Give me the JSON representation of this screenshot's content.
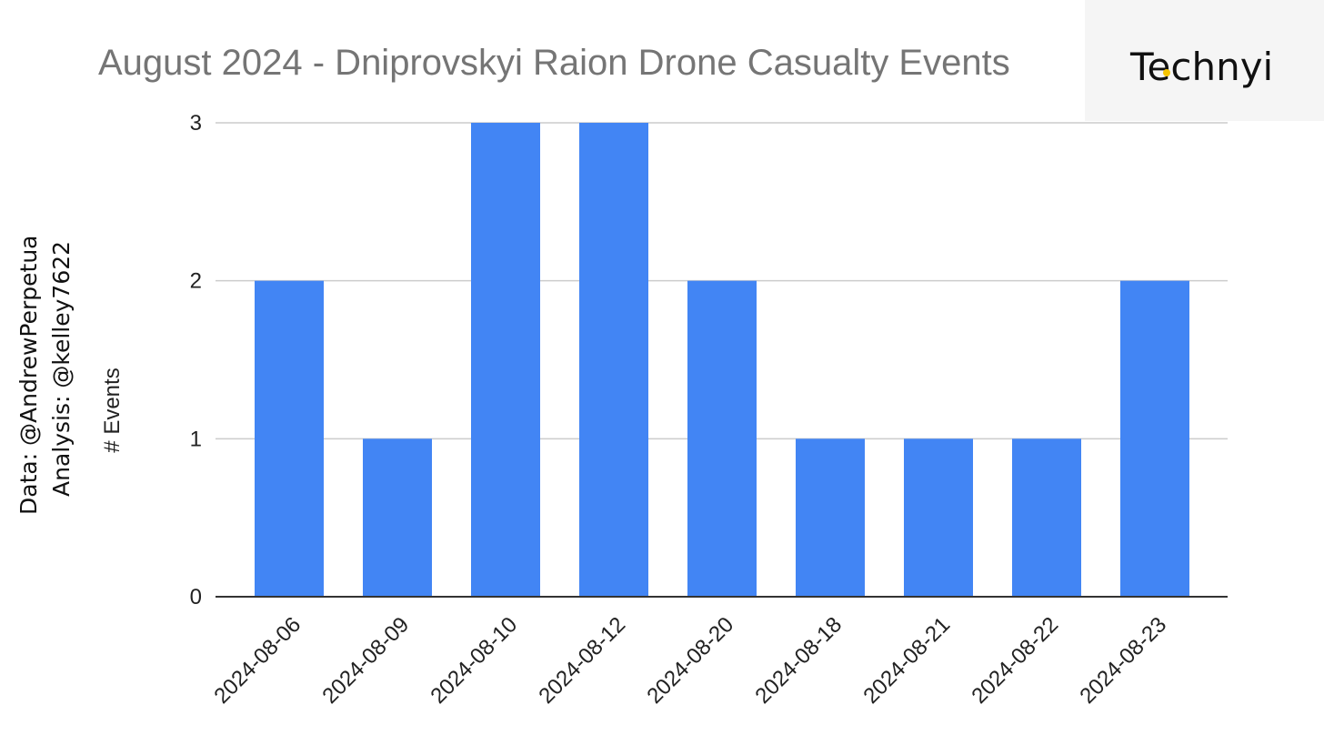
{
  "credits": {
    "data": "Data: @AndrewPerpetua",
    "analysis": "Analysis: @kelley7622"
  },
  "logo": {
    "text": "Technyi",
    "mark": "yellow-dot-icon",
    "mark_color": "#f5c400",
    "background": "#f5f5f5"
  },
  "chart_data": {
    "type": "bar",
    "title": "August 2024 - Dniprovskyi Raion Drone Casualty Events",
    "xlabel": "",
    "ylabel": "# Events",
    "categories": [
      "2024-08-06",
      "2024-08-09",
      "2024-08-10",
      "2024-08-12",
      "2024-08-20",
      "2024-08-18",
      "2024-08-21",
      "2024-08-22",
      "2024-08-23"
    ],
    "values": [
      2,
      1,
      3,
      3,
      2,
      1,
      1,
      1,
      2
    ],
    "ylim": [
      0,
      3
    ],
    "yticks": [
      "0",
      "1",
      "2",
      "3"
    ],
    "grid": true,
    "legend": "none",
    "bar_color": "#4285f4"
  }
}
